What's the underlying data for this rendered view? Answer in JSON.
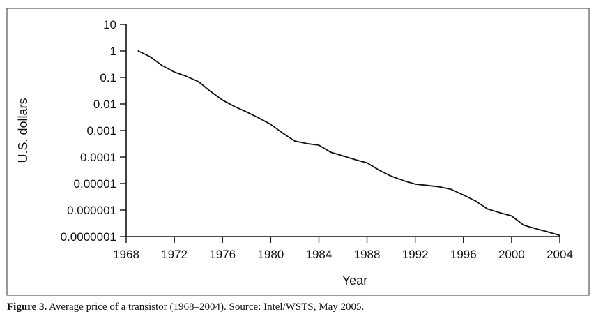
{
  "chart_data": {
    "type": "line",
    "xlabel": "Year",
    "ylabel": "U.S. dollars",
    "xlim": [
      1968,
      2004
    ],
    "ylim": [
      1e-07,
      10
    ],
    "yscale": "log",
    "grid": false,
    "x_ticks": [
      "1968",
      "1972",
      "1976",
      "1980",
      "1984",
      "1988",
      "1992",
      "1996",
      "2000",
      "2004"
    ],
    "y_ticks": [
      "10",
      "1",
      "0.1",
      "0.01",
      "0.001",
      "0.0001",
      "0.00001",
      "0.000001",
      "0.0000001"
    ],
    "series": [
      {
        "x": [
          1969,
          1970,
          1971,
          1972,
          1973,
          1974,
          1975,
          1976,
          1977,
          1978,
          1979,
          1980,
          1981,
          1982,
          1983,
          1984,
          1985,
          1986,
          1987,
          1988,
          1989,
          1990,
          1991,
          1992,
          1993,
          1994,
          1995,
          1996,
          1997,
          1998,
          1999,
          2000,
          2001,
          2002,
          2003,
          2004
        ],
        "y": [
          1.0,
          0.6,
          0.28,
          0.16,
          0.11,
          0.07,
          0.03,
          0.014,
          0.008,
          0.005,
          0.003,
          0.0017,
          0.0008,
          0.0004,
          0.00032,
          0.00028,
          0.00015,
          0.00011,
          8e-05,
          6e-05,
          3.2e-05,
          1.9e-05,
          1.3e-05,
          9.5e-06,
          8.5e-06,
          7.5e-06,
          6e-06,
          3.7e-06,
          2.2e-06,
          1.1e-06,
          8e-07,
          6e-07,
          2.7e-07,
          2e-07,
          1.5e-07,
          1.1e-07
        ]
      }
    ]
  },
  "caption": {
    "label": "Figure 3.",
    "text": "Average price of a transistor (1968–2004). Source: Intel/WSTS, May 2005."
  }
}
